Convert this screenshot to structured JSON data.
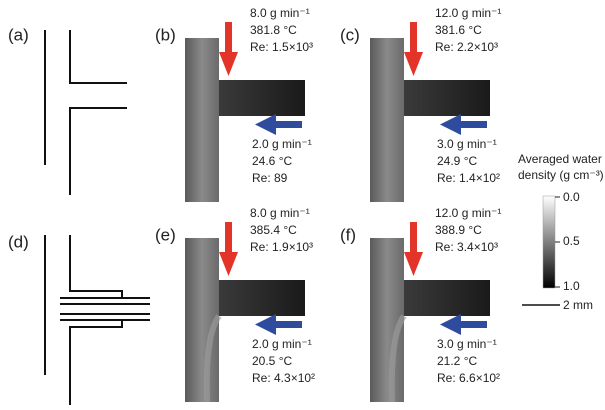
{
  "panels": {
    "a": {
      "label": "(a)"
    },
    "b": {
      "label": "(b)",
      "hot": {
        "flow": "8.0 g min⁻¹",
        "temperature": "381.8 °C",
        "re": "Re: 1.5×10³"
      },
      "cold": {
        "flow": "2.0 g min⁻¹",
        "temperature": "24.6 °C",
        "re": "Re: 89"
      }
    },
    "c": {
      "label": "(c)",
      "hot": {
        "flow": "12.0 g min⁻¹",
        "temperature": "381.6 °C",
        "re": "Re: 2.2×10³"
      },
      "cold": {
        "flow": "3.0 g min⁻¹",
        "temperature": "24.9 °C",
        "re": "Re: 1.4×10²"
      }
    },
    "d": {
      "label": "(d)"
    },
    "e": {
      "label": "(e)",
      "hot": {
        "flow": "8.0 g min⁻¹",
        "temperature": "385.4 °C",
        "re": "Re: 1.9×10³"
      },
      "cold": {
        "flow": "2.0 g min⁻¹",
        "temperature": "20.5 °C",
        "re": "Re: 4.3×10²"
      }
    },
    "f": {
      "label": "(f)",
      "hot": {
        "flow": "12.0 g min⁻¹",
        "temperature": "388.9 °C",
        "re": "Re: 3.4×10³"
      },
      "cold": {
        "flow": "3.0 g min⁻¹",
        "temperature": "21.2 °C",
        "re": "Re: 6.6×10²"
      }
    }
  },
  "colorbar": {
    "title_lines": [
      "Averaged water",
      "density (g cm⁻³)"
    ],
    "ticks": [
      "0.0",
      "0.5",
      "1.0"
    ]
  },
  "scale_bar": "2 mm"
}
